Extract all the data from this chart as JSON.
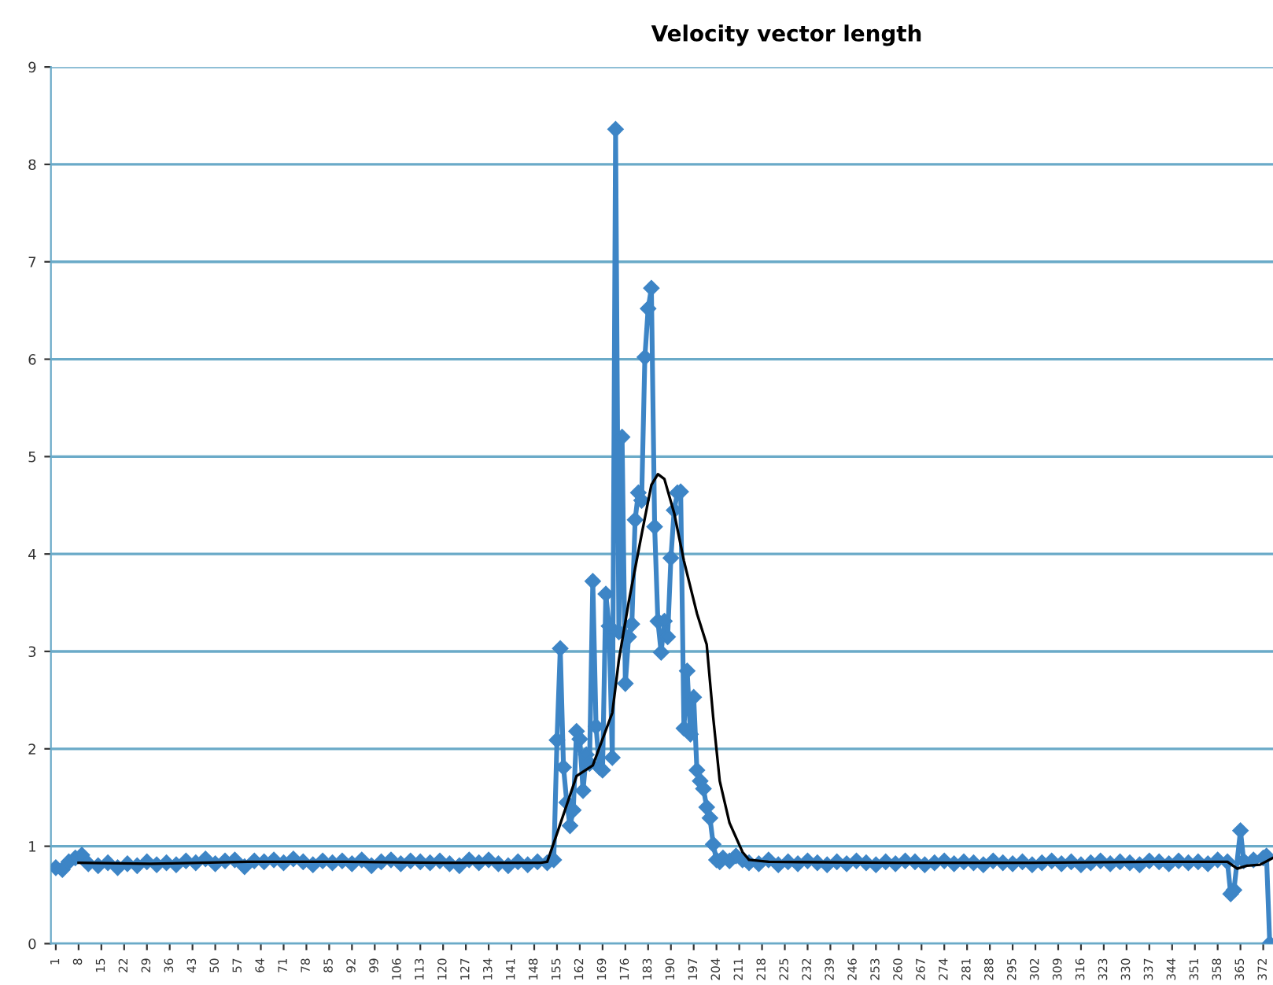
{
  "chart_data": {
    "type": "line",
    "title": "Velocity vector length",
    "xlim": [
      -0.5,
      375
    ],
    "xticks": [
      1,
      8,
      15,
      22,
      29,
      36,
      43,
      50,
      57,
      64,
      71,
      78,
      85,
      92,
      99,
      106,
      113,
      120,
      127,
      134,
      141,
      148,
      155,
      162,
      169,
      176,
      183,
      190,
      197,
      204,
      211,
      218,
      225,
      232,
      239,
      246,
      253,
      260,
      267,
      274,
      281,
      288,
      295,
      302,
      309,
      316,
      323,
      330,
      337,
      344,
      351,
      358,
      365,
      372
    ],
    "ylim": [
      0,
      9
    ],
    "yticks": [
      0,
      1,
      2,
      3,
      4,
      5,
      6,
      7,
      8,
      9
    ],
    "grid": "y",
    "legend": false,
    "line_style": "solid",
    "series": [
      {
        "color": "#3d85c6",
        "marker": "diamond",
        "x": [
          1,
          3,
          5,
          7,
          9,
          11,
          14,
          17,
          20,
          23,
          26,
          29,
          32,
          35,
          38,
          41,
          44,
          47,
          50,
          53,
          56,
          59,
          62,
          65,
          68,
          71,
          74,
          77,
          80,
          83,
          86,
          89,
          92,
          95,
          98,
          101,
          104,
          107,
          110,
          113,
          116,
          119,
          122,
          125,
          128,
          131,
          134,
          137,
          140,
          143,
          146,
          149,
          152,
          154,
          155,
          156,
          157,
          158,
          159,
          160,
          161,
          162,
          163,
          164,
          165,
          166,
          167,
          168,
          169,
          170,
          171,
          172,
          173,
          174,
          175,
          176,
          177,
          178,
          179,
          180,
          181,
          182,
          183,
          184,
          185,
          186,
          187,
          188,
          189,
          190,
          191,
          192,
          193,
          194,
          195,
          196,
          197,
          198,
          199,
          200,
          201,
          202,
          203,
          204,
          205,
          206,
          208,
          210,
          212,
          214,
          217,
          220,
          223,
          226,
          229,
          232,
          235,
          238,
          241,
          244,
          247,
          250,
          253,
          256,
          259,
          262,
          265,
          268,
          271,
          274,
          277,
          280,
          283,
          286,
          289,
          292,
          295,
          298,
          301,
          304,
          307,
          310,
          313,
          316,
          319,
          322,
          325,
          328,
          331,
          334,
          337,
          340,
          343,
          346,
          349,
          352,
          355,
          358,
          361,
          362,
          363,
          365,
          366,
          369,
          372,
          373,
          374
        ],
        "values": [
          0.78,
          0.76,
          0.84,
          0.88,
          0.91,
          0.82,
          0.8,
          0.83,
          0.78,
          0.82,
          0.8,
          0.84,
          0.81,
          0.83,
          0.81,
          0.85,
          0.83,
          0.87,
          0.82,
          0.85,
          0.86,
          0.79,
          0.85,
          0.84,
          0.86,
          0.83,
          0.87,
          0.84,
          0.81,
          0.85,
          0.83,
          0.85,
          0.82,
          0.86,
          0.8,
          0.84,
          0.86,
          0.82,
          0.85,
          0.84,
          0.83,
          0.85,
          0.82,
          0.8,
          0.86,
          0.83,
          0.86,
          0.82,
          0.8,
          0.84,
          0.81,
          0.84,
          0.83,
          0.86,
          2.09,
          3.03,
          1.81,
          1.45,
          1.21,
          1.37,
          2.18,
          2.1,
          1.57,
          1.94,
          1.85,
          3.72,
          2.23,
          1.81,
          1.78,
          3.59,
          3.26,
          1.91,
          8.36,
          3.2,
          5.2,
          2.67,
          3.15,
          3.28,
          4.35,
          4.63,
          4.55,
          6.02,
          6.52,
          6.73,
          4.28,
          3.31,
          2.99,
          3.31,
          3.15,
          3.96,
          4.45,
          4.63,
          4.64,
          2.21,
          2.8,
          2.15,
          2.53,
          1.78,
          1.67,
          1.59,
          1.4,
          1.29,
          1.02,
          0.86,
          0.84,
          0.88,
          0.85,
          0.9,
          0.86,
          0.83,
          0.82,
          0.86,
          0.81,
          0.84,
          0.82,
          0.85,
          0.83,
          0.81,
          0.84,
          0.82,
          0.85,
          0.83,
          0.81,
          0.84,
          0.82,
          0.85,
          0.84,
          0.81,
          0.83,
          0.85,
          0.82,
          0.84,
          0.83,
          0.81,
          0.85,
          0.83,
          0.82,
          0.84,
          0.81,
          0.83,
          0.85,
          0.82,
          0.84,
          0.81,
          0.83,
          0.85,
          0.82,
          0.84,
          0.83,
          0.81,
          0.85,
          0.84,
          0.82,
          0.85,
          0.83,
          0.84,
          0.82,
          0.86,
          0.84,
          0.51,
          0.55,
          1.16,
          0.85,
          0.86,
          0.88,
          0.9,
          0.0
        ]
      },
      {
        "color": "#000000",
        "marker": "none",
        "x": [
          8,
          30,
          60,
          90,
          120,
          150,
          152,
          155,
          161,
          166,
          169,
          172,
          174,
          177,
          181,
          184,
          186,
          188,
          191,
          194,
          198,
          201,
          203,
          205,
          208,
          212,
          214,
          220,
          260,
          300,
          340,
          361,
          364,
          367,
          371,
          375
        ],
        "values": [
          0.83,
          0.82,
          0.84,
          0.84,
          0.83,
          0.83,
          0.84,
          1.13,
          1.72,
          1.83,
          2.1,
          2.37,
          2.91,
          3.5,
          4.2,
          4.71,
          4.82,
          4.77,
          4.42,
          3.93,
          3.39,
          3.07,
          2.32,
          1.67,
          1.24,
          0.94,
          0.86,
          0.84,
          0.83,
          0.83,
          0.84,
          0.84,
          0.77,
          0.8,
          0.81,
          0.88
        ]
      }
    ]
  }
}
